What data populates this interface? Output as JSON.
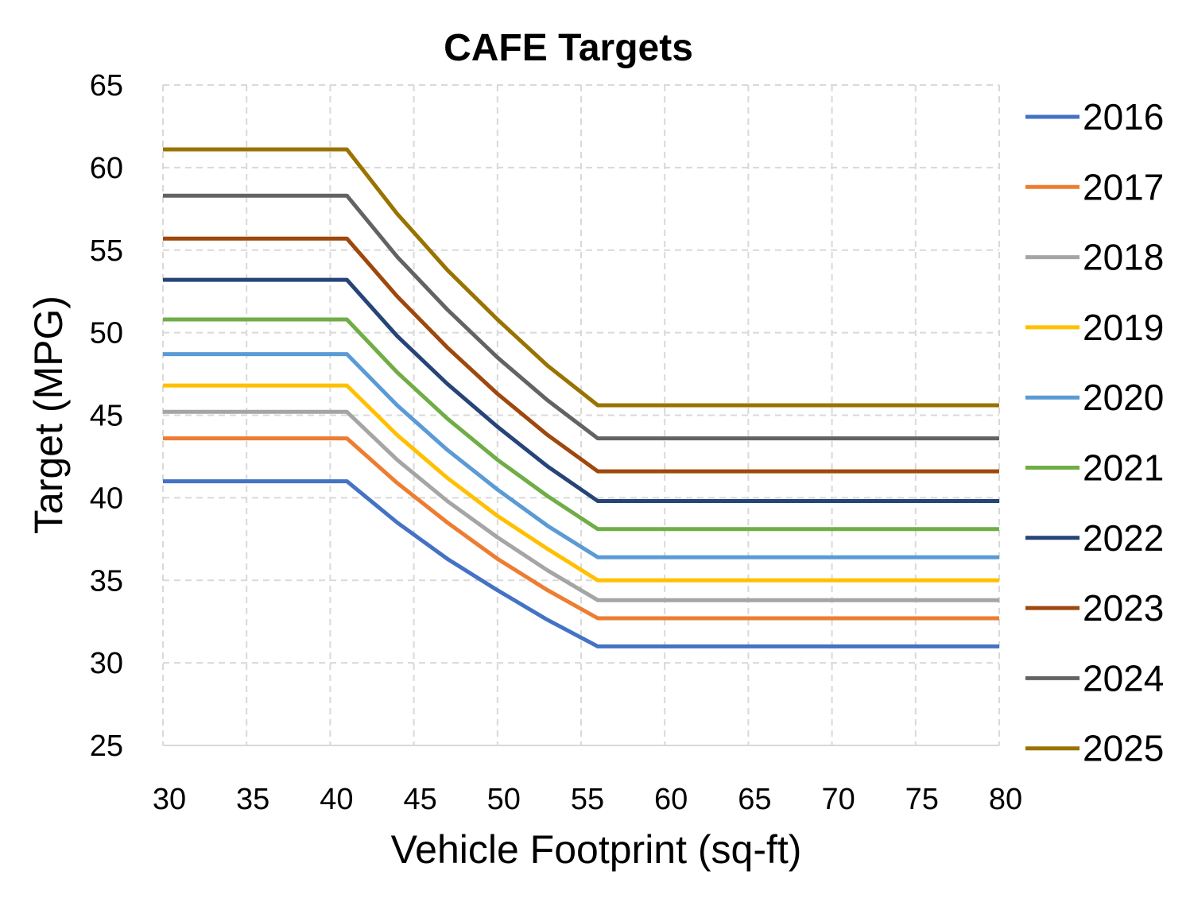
{
  "chart_data": {
    "type": "line",
    "title": "CAFE Targets",
    "xlabel": "Vehicle Footprint (sq-ft)",
    "ylabel": "Target (MPG)",
    "xlim": [
      30,
      80
    ],
    "ylim": [
      25,
      65
    ],
    "xticks": [
      30,
      35,
      40,
      45,
      50,
      55,
      60,
      65,
      70,
      75,
      80
    ],
    "yticks": [
      25,
      30,
      35,
      40,
      45,
      50,
      55,
      60,
      65
    ],
    "grid": true,
    "legend_position": "right",
    "x": [
      30,
      41,
      44,
      47,
      50,
      53,
      56,
      80
    ],
    "series": [
      {
        "name": "2016",
        "color": "#4472c4",
        "values": [
          41.0,
          41.0,
          38.5,
          36.3,
          34.4,
          32.6,
          31.0,
          31.0
        ]
      },
      {
        "name": "2017",
        "color": "#ed7d31",
        "values": [
          43.6,
          43.6,
          40.9,
          38.5,
          36.3,
          34.4,
          32.7,
          32.7
        ]
      },
      {
        "name": "2018",
        "color": "#a5a5a5",
        "values": [
          45.2,
          45.2,
          42.3,
          39.8,
          37.6,
          35.6,
          33.8,
          33.8
        ]
      },
      {
        "name": "2019",
        "color": "#ffc000",
        "values": [
          46.8,
          46.8,
          43.8,
          41.2,
          38.9,
          36.9,
          35.0,
          35.0
        ]
      },
      {
        "name": "2020",
        "color": "#5b9bd5",
        "values": [
          48.7,
          48.7,
          45.6,
          42.9,
          40.5,
          38.3,
          36.4,
          36.4
        ]
      },
      {
        "name": "2021",
        "color": "#70ad47",
        "values": [
          50.8,
          50.8,
          47.6,
          44.8,
          42.3,
          40.1,
          38.1,
          38.1
        ]
      },
      {
        "name": "2022",
        "color": "#264478",
        "values": [
          53.2,
          53.2,
          49.8,
          46.9,
          44.3,
          41.9,
          39.8,
          39.8
        ]
      },
      {
        "name": "2023",
        "color": "#9e480e",
        "values": [
          55.7,
          55.7,
          52.2,
          49.1,
          46.3,
          43.8,
          41.6,
          41.6
        ]
      },
      {
        "name": "2024",
        "color": "#636363",
        "values": [
          58.3,
          58.3,
          54.6,
          51.4,
          48.5,
          45.9,
          43.6,
          43.6
        ]
      },
      {
        "name": "2025",
        "color": "#997300",
        "values": [
          61.1,
          61.1,
          57.2,
          53.8,
          50.8,
          48.0,
          45.6,
          45.6
        ]
      }
    ]
  }
}
